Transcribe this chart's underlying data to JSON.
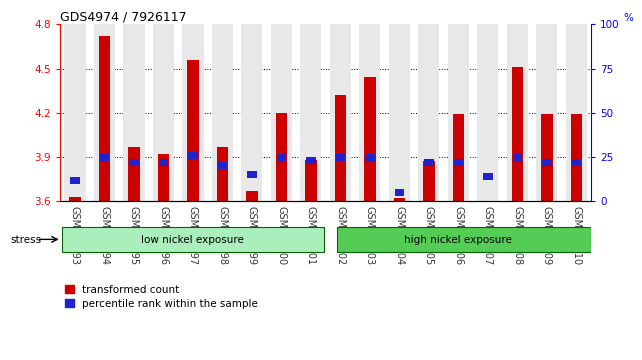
{
  "title": "GDS4974 / 7926117",
  "samples": [
    "GSM992693",
    "GSM992694",
    "GSM992695",
    "GSM992696",
    "GSM992697",
    "GSM992698",
    "GSM992699",
    "GSM992700",
    "GSM992701",
    "GSM992702",
    "GSM992703",
    "GSM992704",
    "GSM992705",
    "GSM992706",
    "GSM992707",
    "GSM992708",
    "GSM992709",
    "GSM992710"
  ],
  "red_values": [
    3.63,
    4.72,
    3.97,
    3.92,
    4.56,
    3.97,
    3.67,
    4.2,
    3.88,
    4.32,
    4.44,
    3.62,
    3.87,
    4.19,
    3.6,
    4.51,
    4.19,
    4.19
  ],
  "blue_pct": [
    12,
    25,
    22,
    22,
    26,
    20,
    15,
    25,
    23,
    25,
    25,
    5,
    22,
    22,
    14,
    25,
    22,
    22
  ],
  "ymin": 3.6,
  "ymax": 4.8,
  "yticks_left": [
    3.6,
    3.9,
    4.2,
    4.5,
    4.8
  ],
  "yticks_right": [
    0,
    25,
    50,
    75,
    100
  ],
  "bar_color": "#cc0000",
  "blue_color": "#2222cc",
  "col_bg_color": "#e8e8e8",
  "group1_label": "low nickel exposure",
  "group2_label": "high nickel exposure",
  "group1_count": 9,
  "group2_count": 9,
  "stress_label": "stress",
  "legend1": "transformed count",
  "legend2": "percentile rank within the sample",
  "group1_color": "#aaeebb",
  "group2_color": "#55cc55",
  "title_fontsize": 9,
  "axis_fontsize": 7.5,
  "tick_fontsize": 7
}
